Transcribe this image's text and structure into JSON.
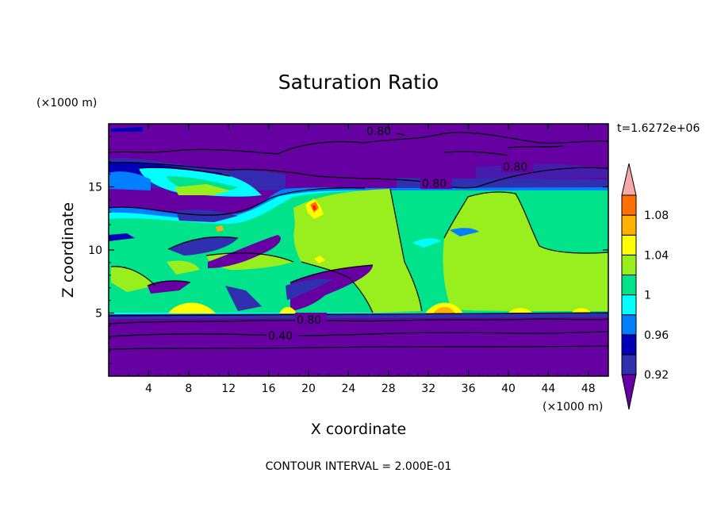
{
  "chart_data": {
    "type": "heatmap",
    "title": "Saturation Ratio",
    "xlabel": "X coordinate",
    "ylabel": "Z coordinate",
    "x_unit": "(×1000 m)",
    "y_unit": "(×1000 m)",
    "time_label": "t=1.6272e+06",
    "footer": "CONTOUR INTERVAL = 2.000E-01",
    "xlim": [
      0,
      50
    ],
    "ylim": [
      0,
      20
    ],
    "x_ticks": [
      4,
      8,
      12,
      16,
      20,
      24,
      28,
      32,
      36,
      40,
      44,
      48
    ],
    "y_ticks": [
      5,
      10,
      15
    ],
    "colorbar": {
      "levels": [
        0.92,
        0.94,
        0.96,
        0.98,
        1.0,
        1.02,
        1.04,
        1.06,
        1.08,
        1.1
      ],
      "colors": [
        "#6600a3",
        "#2f2fb0",
        "#0000b8",
        "#0080ff",
        "#00ffff",
        "#00e38b",
        "#99ee1e",
        "#ffff00",
        "#ffb000",
        "#ff7000",
        "#ff1a1a",
        "#f7a8a8"
      ],
      "labels": [
        "0.92",
        "0.96",
        "1",
        "1.04",
        "1.08"
      ],
      "label_values": [
        0.92,
        0.96,
        1.0,
        1.04,
        1.08
      ]
    },
    "contour_labels": [
      "0.80",
      "0.80",
      "0.80",
      "0.80",
      "0.40"
    ],
    "regions": {
      "lower_layer": {
        "z_top": 4.8,
        "value": 0.4
      },
      "cloud_layer": {
        "z_bottom": 4.8,
        "z_top": 15,
        "value": 1.0
      },
      "upper_layer": {
        "z_bottom": 15,
        "value": 0.8
      }
    }
  }
}
